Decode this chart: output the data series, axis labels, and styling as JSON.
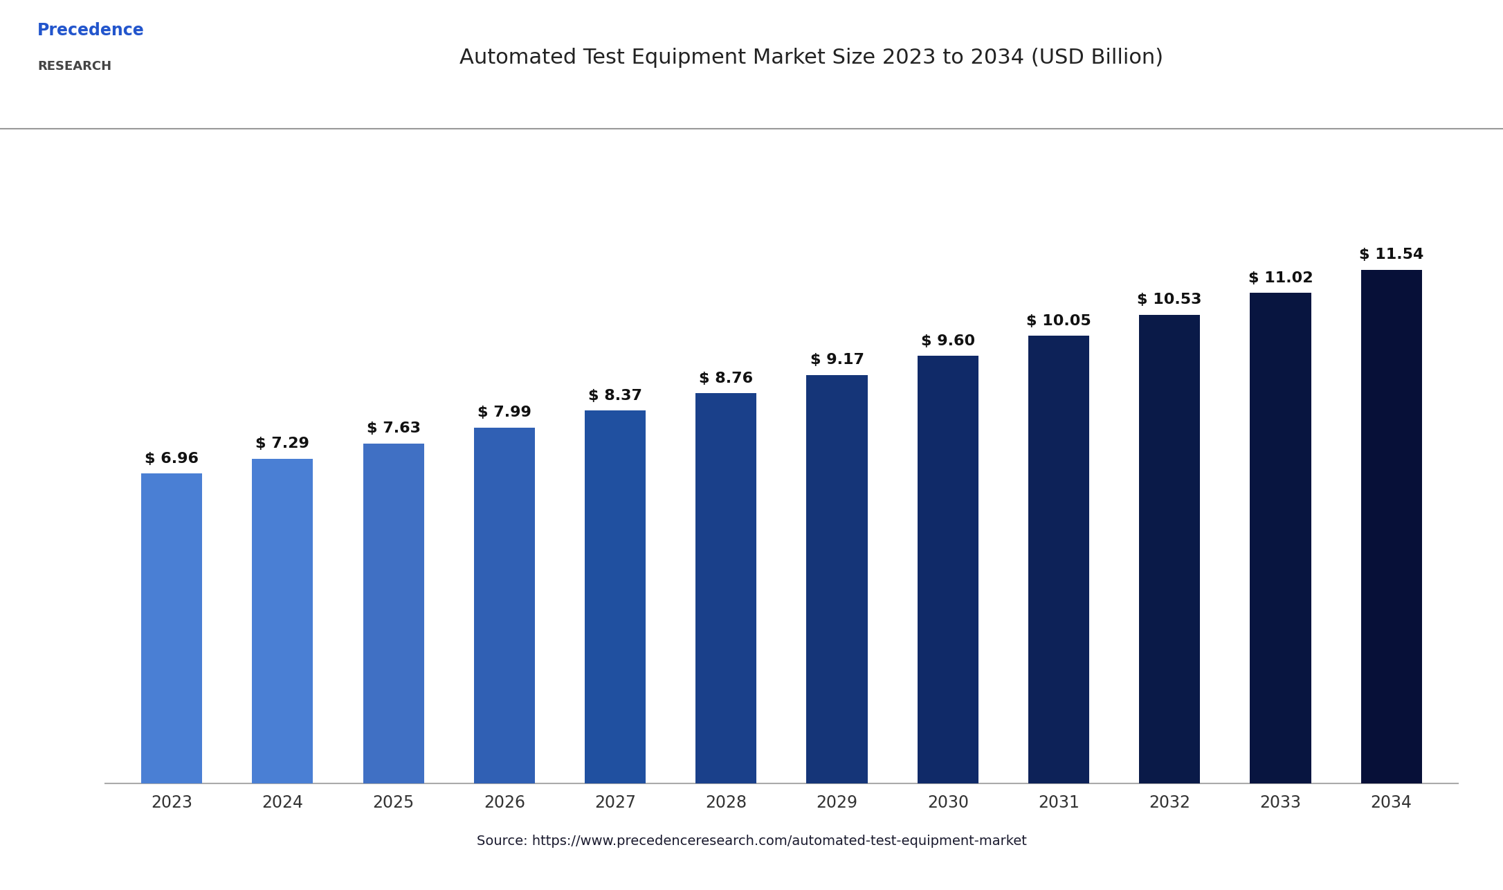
{
  "title": "Automated Test Equipment Market Size 2023 to 2034 (USD Billion)",
  "categories": [
    "2023",
    "2024",
    "2025",
    "2026",
    "2027",
    "2028",
    "2029",
    "2030",
    "2031",
    "2032",
    "2033",
    "2034"
  ],
  "values": [
    6.96,
    7.29,
    7.63,
    7.99,
    8.37,
    8.76,
    9.17,
    9.6,
    10.05,
    10.53,
    11.02,
    11.54
  ],
  "bar_colors": [
    "#4a7fd4",
    "#4a7fd4",
    "#4070c4",
    "#3060b4",
    "#2050a0",
    "#1a408a",
    "#153578",
    "#102a68",
    "#0d2258",
    "#0a1a48",
    "#081540",
    "#071038"
  ],
  "source_text": "Source: https://www.precedenceresearch.com/automated-test-equipment-market",
  "bg_color": "#ffffff",
  "title_color": "#222222",
  "label_color": "#111111",
  "bar_label_fontsize": 16,
  "title_fontsize": 22,
  "source_fontsize": 14,
  "xlabel_fontsize": 17,
  "ylim": [
    0,
    14.0
  ],
  "separator_line_color": "#999999",
  "bottom_spine_color": "#aaaaaa",
  "logo_text_color": "#1a1a2e",
  "source_text_color": "#1a1a2e"
}
